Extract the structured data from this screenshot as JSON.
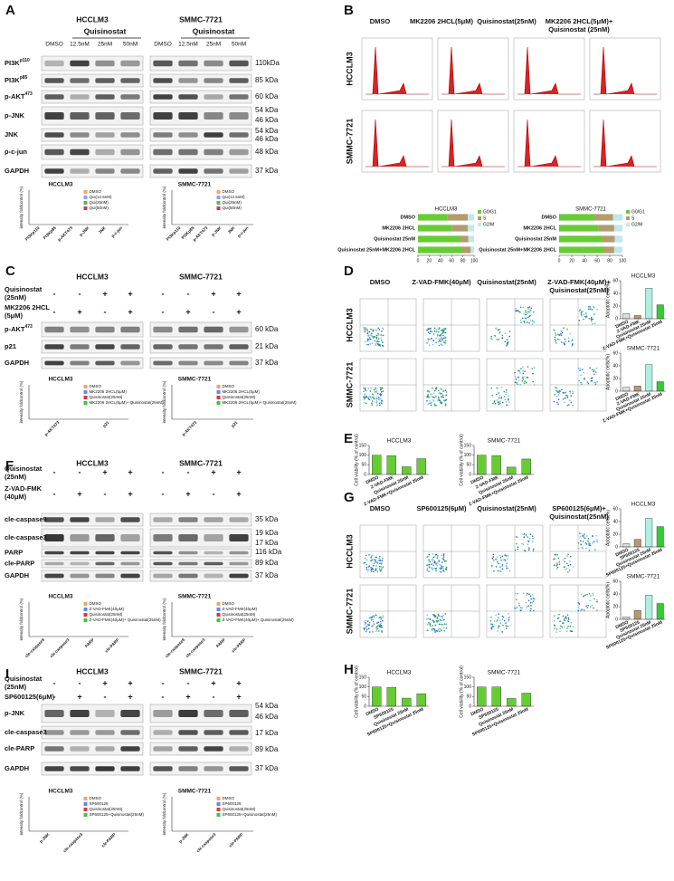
{
  "figure": {
    "A": {
      "letter": "A",
      "lines": [
        "HCCLM3",
        "SMMC-7721"
      ],
      "drug": "Quisinostat",
      "doses": [
        "DMSO",
        "12.5nM",
        "25nM",
        "50nM"
      ],
      "rows": [
        {
          "name": "PI3K",
          "sup": "p110"
        },
        {
          "name": "PI3K",
          "sup": "p85"
        },
        {
          "name": "p-AKT",
          "sup": "473"
        },
        {
          "name": "p-JNK"
        },
        {
          "name": "JNK"
        },
        {
          "name": "p-c-jun"
        },
        {
          "name": "GAPDH"
        }
      ],
      "kda": [
        "110kDa",
        "85 kDa",
        "60 kDa",
        "54 kDa",
        "46 kDa",
        "54 kDa",
        "46 kDa",
        "48 kDa",
        "37 kDa"
      ],
      "ylabel": "intensity foldcontrol (%)",
      "legend": [
        "DMSO",
        "Qui(12.5nM)",
        "Qui(25nM)",
        "Qui(50nM)"
      ],
      "legend_colors": [
        "#f4a460",
        "#9999ee",
        "#55bb55",
        "#cc3377"
      ],
      "xcats": [
        "PI3Kp110",
        "PI3Kp85",
        "p-AKT473",
        "p-JNK",
        "JNK",
        "p-c-jun"
      ]
    },
    "B": {
      "letter": "B",
      "columns": [
        "DMSO",
        "MK2206 2HCL(5μM)",
        "Quisinostat(25nM)",
        "MK2206 2HCL(5μM)+",
        "Quisinostat (25nM)"
      ],
      "lines": [
        "HCCLM3",
        "SMMC-7721"
      ]
    },
    "C": {
      "letter": "C",
      "lines": [
        "HCCLM3",
        "SMMC-7721"
      ],
      "conds": [
        {
          "label": [
            "Quisinostat",
            "(25nM)"
          ],
          "signs": [
            "-",
            "-",
            "+",
            "+"
          ]
        },
        {
          "label": [
            "MK2206 2HCL",
            "(5μM)"
          ],
          "signs": [
            "-",
            "+",
            "-",
            "+"
          ]
        }
      ],
      "rows": [
        {
          "name": "p-AKT",
          "sup": "473"
        },
        {
          "name": "p21"
        },
        {
          "name": "GAPDH"
        }
      ],
      "kda": [
        "60 kDa",
        "21 kDa",
        "37 kDa"
      ],
      "ylabel": "intensity foldcontrol (%)",
      "legend": [
        "DMSO",
        "MK2206 2HCL(5μM)",
        "Quisinostat(25nM)",
        "MK2206 2HCL(5μM)+ Quisinostat(25nM)"
      ],
      "legend_colors": [
        "#f4a460",
        "#6688ee",
        "#dd3344",
        "#33cc33"
      ],
      "xcats": [
        "p-AKT473",
        "p21"
      ]
    },
    "D": {
      "letter": "D",
      "columns": [
        "DMSO",
        "Z-VAD-FMK(40μM)",
        "Quisinostat(25nM)",
        "Z-VAD-FMK(40μM)+",
        "Quisinostat(25nM)"
      ],
      "lines": [
        "HCCLM3",
        "SMMC-7721"
      ]
    },
    "E": {
      "letter": "E"
    },
    "F": {
      "letter": "F",
      "lines": [
        "HCCLM3",
        "SMMC-7721"
      ],
      "conds": [
        {
          "label": [
            "Quisinostat",
            "(25nM)"
          ],
          "signs": [
            "-",
            "-",
            "+",
            "+"
          ]
        },
        {
          "label": [
            "Z-VAD-FMK",
            "(40μM)"
          ],
          "signs": [
            "-",
            "+",
            "-",
            "+"
          ]
        }
      ],
      "rows": [
        {
          "name": "cle-caspase9"
        },
        {
          "name": "cle-caspase3"
        },
        {
          "name": "PARP"
        },
        {
          "name": "cle-PARP"
        },
        {
          "name": "GAPDH"
        }
      ],
      "kda": [
        "35 kDa",
        "19 kDa",
        "17 kDa",
        "116 kDa",
        "89 kDa",
        "37 kDa"
      ],
      "ylabel": "intensity foldcontrol (%)",
      "legend": [
        "DMSO",
        "Z-VAD-FMK(40μM)",
        "Quisinostat(25nM)",
        "Z-VAD-FMK(40μM)+ Quisinostat(25nM)"
      ],
      "legend_colors": [
        "#f4a460",
        "#6688ee",
        "#dd3344",
        "#33cc33"
      ],
      "xcats": [
        "cle-caspase9",
        "cle-caspase3",
        "PARP",
        "cle-PARP"
      ]
    },
    "G": {
      "letter": "G",
      "columns": [
        "DMSO",
        "SP600125(6μM)",
        "Quisinostat(25nM)",
        "SP600125(6μM)+",
        "Quisinostat(25nM)"
      ],
      "lines": [
        "HCCLM3",
        "SMMC-7721"
      ]
    },
    "H": {
      "letter": "H"
    },
    "I": {
      "letter": "I",
      "lines": [
        "HCCLM3",
        "SMMC-7721"
      ],
      "conds": [
        {
          "label": [
            "Quisinostat",
            "(25nM)"
          ],
          "signs": [
            "-",
            "-",
            "+",
            "+"
          ]
        },
        {
          "label": [
            "SP600125(6μM)"
          ],
          "signs": [
            "-",
            "+",
            "-",
            "+"
          ]
        }
      ],
      "rows": [
        {
          "name": "p-JNK"
        },
        {
          "name": "cle-caspase3"
        },
        {
          "name": "cle-PARP"
        },
        {
          "name": "GAPDH"
        }
      ],
      "kda": [
        "54 kDa",
        "46 kDa",
        "17 kDa",
        "89 kDa",
        "37 kDa"
      ],
      "ylabel": "intensity foldcontrol (%)",
      "legend": [
        "DMSO",
        "SP600125",
        "Quisinostat(25nM)",
        "SP600125+Quisinostat(25nM)"
      ],
      "legend_colors": [
        "#f4a460",
        "#6688ee",
        "#dd3344",
        "#33cc33"
      ],
      "xcats": [
        "p-JNK",
        "cle-caspase3",
        "cle-PARP"
      ]
    }
  },
  "chart_data": [
    {
      "type": "stacked_bar",
      "title": "HCCLM3",
      "categories": [
        "DMSO",
        "MK2206 2HCL",
        "Quisinostat 25nM",
        "Quisinostat 25nM+MK2206 2HCL"
      ],
      "series": [
        {
          "name": "G0/G1",
          "color": "#66cc33",
          "values": [
            52,
            60,
            75,
            79
          ]
        },
        {
          "name": "S",
          "color": "#b39b6e",
          "values": [
            37,
            29,
            15,
            15
          ]
        },
        {
          "name": "G2/M",
          "color": "#bfe8f0",
          "values": [
            11,
            11,
            10,
            6
          ]
        }
      ],
      "xlim": [
        0,
        100
      ],
      "xticks": [
        0,
        20,
        40,
        60,
        80,
        100
      ]
    },
    {
      "type": "stacked_bar",
      "title": "SMMC-7721",
      "categories": [
        "DMSO",
        "MK2206 2HCL",
        "Quisinostat 25nM",
        "Quisinostat 25nM+MK2206 2HCL"
      ],
      "series": [
        {
          "name": "G0/G1",
          "color": "#66cc33",
          "values": [
            55,
            62,
            68,
            70
          ]
        },
        {
          "name": "S",
          "color": "#b39b6e",
          "values": [
            30,
            25,
            20,
            17
          ]
        },
        {
          "name": "G2/M",
          "color": "#bfe8f0",
          "values": [
            15,
            13,
            12,
            13
          ]
        }
      ],
      "xlim": [
        0,
        100
      ],
      "xticks": [
        0,
        20,
        40,
        60,
        80,
        100
      ]
    },
    {
      "type": "bar",
      "title": "HCCLM3",
      "ylabel": "Apoptotic cells(%)",
      "categories": [
        "DMSO",
        "Z-VAD-FMK",
        "Quisinostat 25nM",
        "Z-VAD-FMK+Quisinostat 25nM"
      ],
      "values": [
        8,
        5,
        48,
        22
      ],
      "colors": [
        "#dddddd",
        "#b39b6e",
        "#aef0e0",
        "#33cc33"
      ],
      "ylim": [
        0,
        60
      ],
      "yticks": [
        0,
        20,
        40,
        60
      ]
    },
    {
      "type": "bar",
      "title": "SMMC-7721",
      "ylabel": "Apoptotic cells(%)",
      "categories": [
        "DMSO",
        "Z-VAD-FMK",
        "Quisinostat 25nM",
        "Z-VAD-FMK+Quisinostat 25nM"
      ],
      "values": [
        6,
        8,
        42,
        15
      ],
      "colors": [
        "#dddddd",
        "#b39b6e",
        "#aef0e0",
        "#33cc33"
      ],
      "ylim": [
        0,
        60
      ],
      "yticks": [
        0,
        20,
        40,
        60
      ]
    },
    {
      "type": "bar",
      "title": "HCCLM3",
      "ylabel": "Cell viability (% of control)",
      "categories": [
        "DMSO",
        "Z-VAD-FMK",
        "Quisinostat 25nM",
        "Z-VAD-FMK+Quisinostat 25nM"
      ],
      "values": [
        100,
        97,
        40,
        82
      ],
      "colors": [
        "#66cc33",
        "#66cc33",
        "#66cc33",
        "#66cc33"
      ],
      "ylim": [
        0,
        150
      ],
      "yticks": [
        0,
        50,
        100,
        150
      ]
    },
    {
      "type": "bar",
      "title": "SMMC-7721",
      "ylabel": "Cell viability (% of control)",
      "categories": [
        "DMSO",
        "Z-VAD-FMK",
        "Quisinostat 25nM",
        "Z-VAD-FMK+Quisinostat 25nM"
      ],
      "values": [
        100,
        98,
        38,
        80
      ],
      "colors": [
        "#66cc33",
        "#66cc33",
        "#66cc33",
        "#66cc33"
      ],
      "ylim": [
        0,
        150
      ],
      "yticks": [
        0,
        50,
        100,
        150
      ]
    },
    {
      "type": "bar",
      "title": "HCCLM3",
      "ylabel": "Apoptotic cells(%)",
      "categories": [
        "DMSO",
        "SP600125",
        "Quisinostat 25nM",
        "SP600125+Quisinostat 25nM"
      ],
      "values": [
        5,
        12,
        45,
        32
      ],
      "colors": [
        "#dddddd",
        "#b39b6e",
        "#aef0e0",
        "#33cc33"
      ],
      "ylim": [
        0,
        60
      ],
      "yticks": [
        0,
        20,
        40,
        60
      ]
    },
    {
      "type": "bar",
      "title": "SMMC-7721",
      "ylabel": "Apoptotic cells(%)",
      "categories": [
        "DMSO",
        "SP600125",
        "Quisinostat 25nM",
        "SP600125+Quisinostat 25nM"
      ],
      "values": [
        4,
        14,
        38,
        25
      ],
      "colors": [
        "#dddddd",
        "#b39b6e",
        "#aef0e0",
        "#33cc33"
      ],
      "ylim": [
        0,
        60
      ],
      "yticks": [
        0,
        20,
        40,
        60
      ]
    },
    {
      "type": "bar",
      "title": "HCCLM3",
      "ylabel": "Cell viability (% of control)",
      "categories": [
        "DMSO",
        "SP600125",
        "Quisinostat 25nM",
        "SP600125+Quisinostat 25nM"
      ],
      "values": [
        100,
        98,
        42,
        65
      ],
      "colors": [
        "#66cc33",
        "#66cc33",
        "#66cc33",
        "#66cc33"
      ],
      "ylim": [
        0,
        150
      ],
      "yticks": [
        0,
        50,
        100,
        150
      ]
    },
    {
      "type": "bar",
      "title": "SMMC-7721",
      "ylabel": "Cell viability (% of control)",
      "categories": [
        "DMSO",
        "SP600125",
        "Quisinostat 25nM",
        "SP600125+Quisinostat 25nM"
      ],
      "values": [
        100,
        100,
        40,
        68
      ],
      "colors": [
        "#66cc33",
        "#66cc33",
        "#66cc33",
        "#66cc33"
      ],
      "ylim": [
        0,
        150
      ],
      "yticks": [
        0,
        50,
        100,
        150
      ]
    }
  ]
}
